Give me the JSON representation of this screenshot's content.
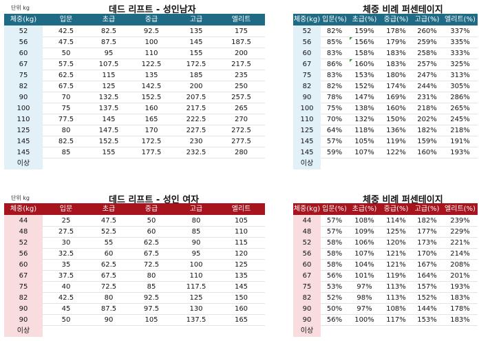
{
  "men": {
    "unit": "단위 kg",
    "title": "데드 리프트 - 성인남자",
    "headers": [
      "체중(kg)",
      "입문",
      "초급",
      "중급",
      "고급",
      "엘리트"
    ],
    "rows": [
      [
        "52",
        "42.5",
        "82.5",
        "92.5",
        "135",
        "175"
      ],
      [
        "56",
        "47.5",
        "87.5",
        "100",
        "145",
        "187.5"
      ],
      [
        "60",
        "50",
        "95",
        "110",
        "155",
        "200"
      ],
      [
        "67",
        "57.5",
        "107.5",
        "122.5",
        "172.5",
        "217.5"
      ],
      [
        "75",
        "62.5",
        "115",
        "135",
        "185",
        "235"
      ],
      [
        "82",
        "67.5",
        "125",
        "142.5",
        "200",
        "250"
      ],
      [
        "90",
        "70",
        "132.5",
        "152.5",
        "207.5",
        "257.5"
      ],
      [
        "100",
        "75",
        "137.5",
        "160",
        "217.5",
        "265"
      ],
      [
        "110",
        "77.5",
        "145",
        "165",
        "222.5",
        "270"
      ],
      [
        "125",
        "80",
        "147.5",
        "170",
        "227.5",
        "272.5"
      ],
      [
        "145",
        "82.5",
        "152.5",
        "172.5",
        "230",
        "277.5"
      ],
      [
        "145",
        "85",
        "155",
        "177.5",
        "232.5",
        "280"
      ]
    ],
    "footer": "이상"
  },
  "men_pct": {
    "title": "체중 비례 퍼센테이지",
    "headers": [
      "체중(kg)",
      "입문(%)",
      "초급(%)",
      "중급(%)",
      "고급(%)",
      "엘리트(%)"
    ],
    "rows": [
      [
        "52",
        "82%",
        "159%",
        "178%",
        "260%",
        "337%"
      ],
      [
        "56",
        "85%",
        "156%",
        "179%",
        "259%",
        "335%"
      ],
      [
        "60",
        "83%",
        "158%",
        "183%",
        "258%",
        "333%"
      ],
      [
        "67",
        "86%",
        "160%",
        "183%",
        "257%",
        "325%"
      ],
      [
        "75",
        "83%",
        "153%",
        "180%",
        "247%",
        "313%"
      ],
      [
        "82",
        "82%",
        "152%",
        "174%",
        "244%",
        "305%"
      ],
      [
        "90",
        "78%",
        "147%",
        "169%",
        "231%",
        "286%"
      ],
      [
        "100",
        "75%",
        "138%",
        "160%",
        "218%",
        "265%"
      ],
      [
        "110",
        "70%",
        "132%",
        "150%",
        "202%",
        "245%"
      ],
      [
        "125",
        "64%",
        "118%",
        "136%",
        "182%",
        "218%"
      ],
      [
        "145",
        "57%",
        "105%",
        "119%",
        "159%",
        "191%"
      ],
      [
        "145",
        "59%",
        "107%",
        "122%",
        "160%",
        "193%"
      ]
    ],
    "footer": "이상"
  },
  "women": {
    "unit": "단위 kg",
    "title": "데드 리프트 - 성인 여자",
    "headers": [
      "체중(kg)",
      "입문",
      "초급",
      "중급",
      "고급",
      "엘리트"
    ],
    "rows": [
      [
        "44",
        "25",
        "47.5",
        "50",
        "80",
        "105"
      ],
      [
        "48",
        "27.5",
        "52.5",
        "60",
        "85",
        "110"
      ],
      [
        "52",
        "30",
        "55",
        "62.5",
        "90",
        "115"
      ],
      [
        "56",
        "32.5",
        "60",
        "67.5",
        "95",
        "120"
      ],
      [
        "60",
        "35",
        "62.5",
        "72.5",
        "100",
        "125"
      ],
      [
        "67",
        "37.5",
        "67.5",
        "80",
        "110",
        "135"
      ],
      [
        "75",
        "40",
        "72.5",
        "85",
        "117.5",
        "145"
      ],
      [
        "82",
        "42.5",
        "80",
        "92.5",
        "125",
        "150"
      ],
      [
        "90",
        "45",
        "87.5",
        "97.5",
        "130",
        "160"
      ],
      [
        "90",
        "50",
        "90",
        "105",
        "137.5",
        "165"
      ]
    ],
    "footer": "이상"
  },
  "women_pct": {
    "title": "체중 비례 퍼센테이지",
    "headers": [
      "체중(kg)",
      "입문(%)",
      "초급(%)",
      "중급(%)",
      "고급(%)",
      "엘리트(%)"
    ],
    "rows": [
      [
        "44",
        "57%",
        "108%",
        "114%",
        "182%",
        "239%"
      ],
      [
        "48",
        "57%",
        "109%",
        "125%",
        "177%",
        "229%"
      ],
      [
        "52",
        "58%",
        "106%",
        "120%",
        "173%",
        "221%"
      ],
      [
        "56",
        "58%",
        "107%",
        "121%",
        "170%",
        "214%"
      ],
      [
        "60",
        "58%",
        "104%",
        "121%",
        "167%",
        "208%"
      ],
      [
        "67",
        "56%",
        "101%",
        "119%",
        "164%",
        "201%"
      ],
      [
        "75",
        "53%",
        "97%",
        "113%",
        "157%",
        "193%"
      ],
      [
        "82",
        "52%",
        "98%",
        "113%",
        "152%",
        "183%"
      ],
      [
        "90",
        "50%",
        "97%",
        "108%",
        "144%",
        "178%"
      ],
      [
        "90",
        "56%",
        "100%",
        "117%",
        "153%",
        "183%"
      ]
    ],
    "footer": "이상"
  }
}
